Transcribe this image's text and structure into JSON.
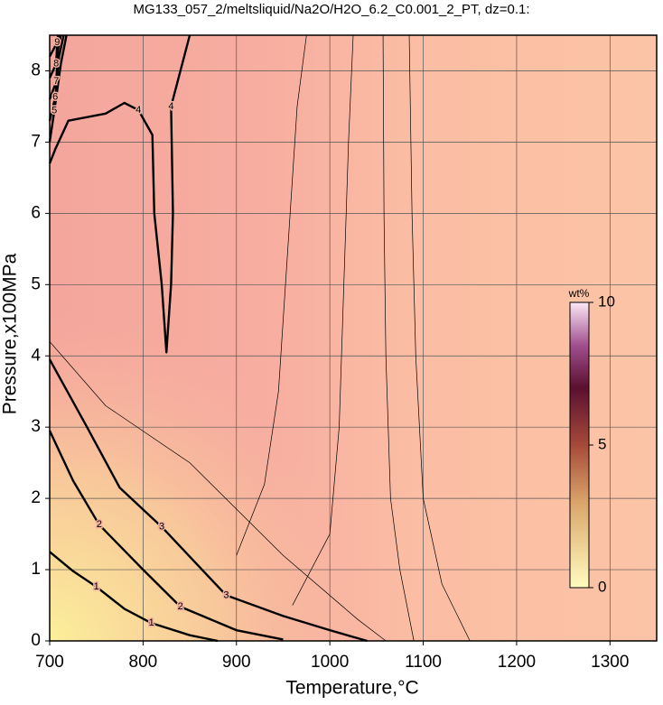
{
  "chart_data": {
    "type": "contour",
    "title": "MG133_057_2/meltsliquid/Na2O/H2O_6.2_C0.001_2_PT, dz=0.1:",
    "x_label": "Temperature,°C",
    "y_label": "Pressure,x100MPa",
    "xlim": [
      700,
      1350
    ],
    "xticks": [
      700,
      800,
      900,
      1000,
      1100,
      1200,
      1300
    ],
    "ylim": [
      0,
      8.5
    ],
    "yticks": [
      0,
      1,
      2,
      3,
      4,
      5,
      6,
      7,
      8
    ],
    "grid": true,
    "colorbar": {
      "label": "wt%",
      "lim": [
        0,
        10
      ],
      "ticks": [
        0,
        5,
        10
      ]
    },
    "contours": [
      {
        "level": 1,
        "bold": true,
        "x": [
          700,
          725,
          750,
          780,
          809,
          850,
          880
        ],
        "y": [
          1.25,
          0.98,
          0.76,
          0.45,
          0.25,
          0.08,
          0
        ]
      },
      {
        "level": 2,
        "bold": true,
        "x": [
          700,
          725,
          753,
          800,
          840,
          900,
          950
        ],
        "y": [
          2.95,
          2.25,
          1.63,
          1.0,
          0.48,
          0.15,
          0.02
        ]
      },
      {
        "level": 3,
        "bold": true,
        "x": [
          700,
          740,
          775,
          820,
          889,
          950,
          1000,
          1040
        ],
        "y": [
          3.95,
          3.0,
          2.15,
          1.6,
          0.64,
          0.35,
          0.15,
          0
        ]
      },
      {
        "level": 4,
        "bold": true,
        "x": [
          850,
          830,
          832,
          830,
          825,
          820,
          812,
          810,
          795,
          780,
          760,
          720,
          706,
          700
        ],
        "y": [
          8.5,
          7.5,
          6,
          5,
          4.05,
          5,
          6,
          7.1,
          7.45,
          7.55,
          7.4,
          7.3,
          6.9,
          6.7
        ]
      },
      {
        "level": 5,
        "bold": true,
        "x": [
          700,
          705,
          712,
          718
        ],
        "y": [
          7.0,
          7.44,
          8.1,
          8.5
        ]
      },
      {
        "level": 6,
        "bold": true,
        "x": [
          700,
          706,
          710,
          715
        ],
        "y": [
          7.3,
          7.63,
          8.2,
          8.5
        ]
      },
      {
        "level": 7,
        "bold": true,
        "x": [
          700,
          707,
          709,
          712
        ],
        "y": [
          7.6,
          7.85,
          8.3,
          8.5
        ]
      },
      {
        "level": 8,
        "bold": true,
        "x": [
          700,
          707,
          708,
          710
        ],
        "y": [
          7.9,
          8.1,
          8.4,
          8.5
        ]
      },
      {
        "level": 9,
        "bold": true,
        "x": [
          700,
          708,
          709
        ],
        "y": [
          8.2,
          8.4,
          8.5
        ]
      },
      {
        "level": 3.5,
        "bold": false,
        "x": [
          700,
          760,
          850,
          950,
          1030,
          1060
        ],
        "y": [
          4.2,
          3.3,
          2.5,
          1.2,
          0.3,
          0
        ]
      },
      {
        "level": 3.7,
        "bold": false,
        "x": [
          1150,
          1120,
          1100,
          1092,
          1088,
          1085
        ],
        "y": [
          0,
          0.8,
          2,
          4,
          6,
          8.5
        ]
      },
      {
        "level": 3.8,
        "bold": false,
        "x": [
          1090,
          1075,
          1065,
          1060,
          1058,
          1057
        ],
        "y": [
          0,
          1,
          2,
          4,
          6,
          8.5
        ]
      },
      {
        "level": 3.9,
        "bold": false,
        "x": [
          960,
          1000,
          1010,
          1015,
          1020,
          1025
        ],
        "y": [
          0.5,
          1.5,
          3,
          5,
          7,
          8.5
        ]
      },
      {
        "level": 3.95,
        "bold": false,
        "x": [
          900,
          930,
          945,
          955,
          965,
          975
        ],
        "y": [
          1.2,
          2.2,
          3.5,
          5.5,
          7.5,
          8.5
        ]
      }
    ]
  }
}
